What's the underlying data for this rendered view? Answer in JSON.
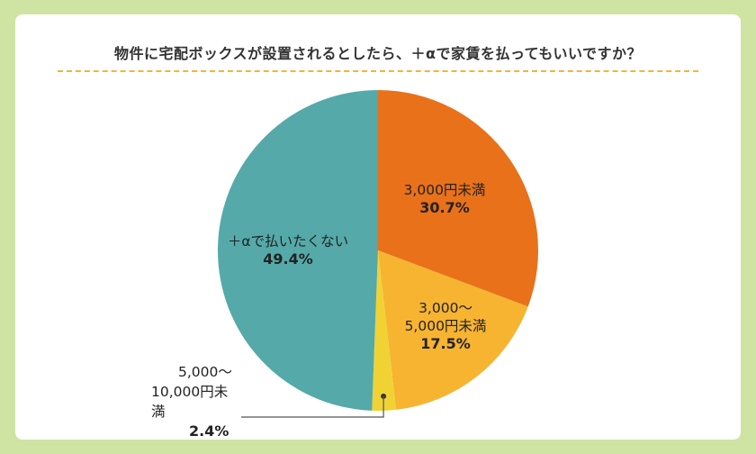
{
  "title": "物件に宅配ボックスが設置されるとしたら、＋αで家賃を払ってもいいですか？",
  "colors": {
    "background": "#cfe3a3",
    "divider": "#f0b53a"
  },
  "chart_data": {
    "type": "pie",
    "title": "物件に宅配ボックスが設置されるとしたら、＋αで家賃を払ってもいいですか？",
    "slices": [
      {
        "label": "3,000円未満",
        "value": 30.7,
        "value_label": "30.7%",
        "color": "#e8711a"
      },
      {
        "label_line1": "3,000～",
        "label_line2": "5,000円未満",
        "value": 17.5,
        "value_label": "17.5%",
        "color": "#f6b431"
      },
      {
        "label_line1": "5,000～",
        "label_line2": "10,000円未満",
        "value": 2.4,
        "value_label": "2.4%",
        "color": "#f1d234"
      },
      {
        "label": "＋αで払いたくない",
        "value": 49.4,
        "value_label": "49.4%",
        "color": "#55a9a9"
      }
    ]
  }
}
